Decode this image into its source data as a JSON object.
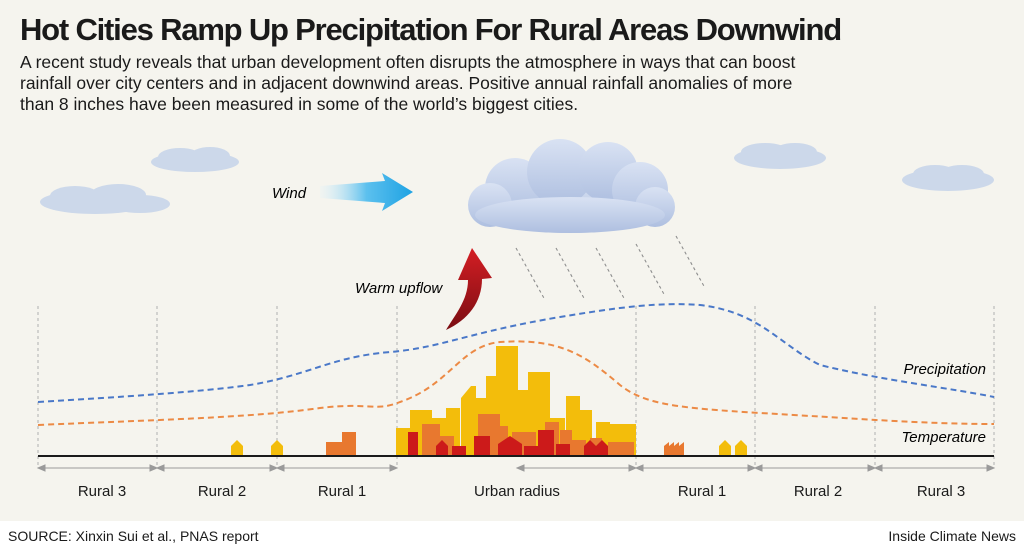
{
  "title": "Hot Cities Ramp Up Precipitation For Rural Areas Downwind",
  "description": [
    "A recent study reveals that urban development often disrupts the atmosphere in ways that can boost",
    "rainfall over city centers and in adjacent downwind areas. Positive annual rainfall anomalies of more",
    "than 8 inches have been measured in some of the world’s biggest cities."
  ],
  "labels": {
    "wind": "Wind",
    "warm_upflow": "Warm upflow",
    "precipitation": "Precipitation",
    "temperature": "Temperature"
  },
  "zones": [
    "Rural 3",
    "Rural 2",
    "Rural 1",
    "Urban radius",
    "Rural 1",
    "Rural 2",
    "Rural 3"
  ],
  "source": "SOURCE: Xinxin Sui et al., PNAS report",
  "credit": "Inside Climate News",
  "colors": {
    "background": "#f5f4ee",
    "precipitation_line": "#4a78c8",
    "temperature_line": "#ec8a45",
    "wind_arrow": "#29a8e6",
    "upflow_arrow": "#b3141b",
    "building_yellow": "#f3bd0b",
    "building_orange": "#e8782f",
    "building_red": "#cc1a1a",
    "cloud": "#c5d3ea"
  }
}
